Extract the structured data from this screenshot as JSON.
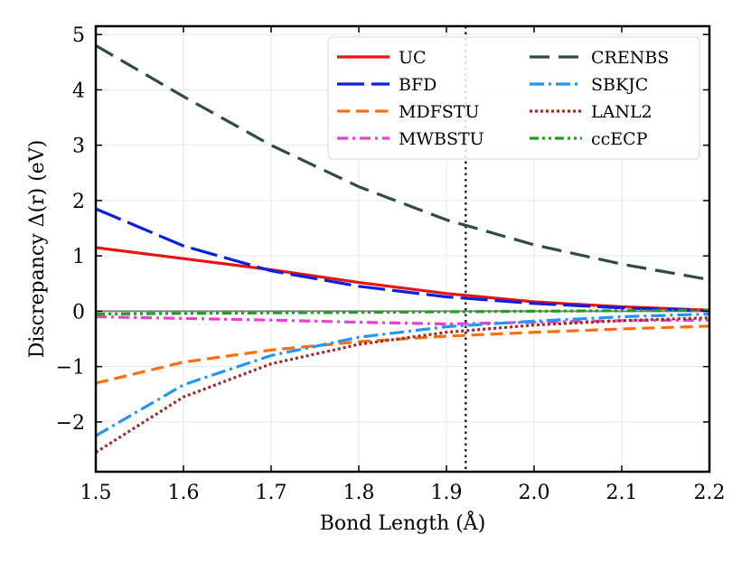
{
  "chart_data": {
    "type": "line",
    "title": "",
    "xlabel": "Bond Length (Å)",
    "ylabel": "Discrepancy Δ(r) (eV)",
    "xlim": [
      1.5,
      2.2
    ],
    "ylim": [
      -2.9,
      5.15
    ],
    "xticks": [
      1.5,
      1.6,
      1.7,
      1.8,
      1.9,
      2.0,
      2.1,
      2.2
    ],
    "xtick_labels": [
      "1.5",
      "1.6",
      "1.7",
      "1.8",
      "1.9",
      "2.0",
      "2.1",
      "2.2"
    ],
    "yticks": [
      -2,
      -1,
      0,
      1,
      2,
      3,
      4,
      5
    ],
    "ytick_labels": [
      "−2",
      "−1",
      "0",
      "1",
      "2",
      "3",
      "4",
      "5"
    ],
    "grid": true,
    "legend_position": "top-right",
    "legend_columns": 2,
    "zero_line": 0,
    "vertical_marker": {
      "x": 1.922,
      "style": "dotted",
      "color": "#000000"
    },
    "x": [
      1.5,
      1.6,
      1.7,
      1.8,
      1.9,
      2.0,
      2.1,
      2.2
    ],
    "series": [
      {
        "name": "UC",
        "color": "#e8140f",
        "dash": "",
        "values": [
          1.15,
          0.95,
          0.75,
          0.52,
          0.32,
          0.17,
          0.08,
          0.02
        ]
      },
      {
        "name": "BFD",
        "color": "#0a1fe0",
        "dash": "30 8",
        "values": [
          1.85,
          1.18,
          0.73,
          0.45,
          0.26,
          0.14,
          0.06,
          0.01
        ]
      },
      {
        "name": "MDFSTU",
        "color": "#ff6f0e",
        "dash": "14 7",
        "values": [
          -1.3,
          -0.92,
          -0.7,
          -0.55,
          -0.45,
          -0.38,
          -0.32,
          -0.27
        ]
      },
      {
        "name": "MWBSTU",
        "color": "#ea3fd0",
        "dash": "12 5 3 5",
        "values": [
          -0.1,
          -0.13,
          -0.16,
          -0.2,
          -0.23,
          -0.2,
          -0.17,
          -0.16
        ]
      },
      {
        "name": "CRENBS",
        "color": "#2e4a4a",
        "dash": "22 10",
        "values": [
          4.8,
          3.88,
          3.0,
          2.25,
          1.65,
          1.2,
          0.85,
          0.57
        ]
      },
      {
        "name": "SBKJC",
        "color": "#2196f3",
        "dash": "16 5 3 5",
        "values": [
          -2.25,
          -1.33,
          -0.8,
          -0.47,
          -0.28,
          -0.18,
          -0.1,
          -0.05
        ]
      },
      {
        "name": "LANL2",
        "color": "#9b2c2c",
        "dash": "3 3",
        "values": [
          -2.55,
          -1.55,
          -0.95,
          -0.6,
          -0.38,
          -0.25,
          -0.17,
          -0.12
        ]
      },
      {
        "name": "ccECP",
        "color": "#1aa31a",
        "dash": "10 4 3 4 3 4",
        "values": [
          -0.05,
          -0.04,
          -0.03,
          -0.02,
          -0.01,
          0.0,
          0.01,
          0.02
        ]
      }
    ]
  }
}
